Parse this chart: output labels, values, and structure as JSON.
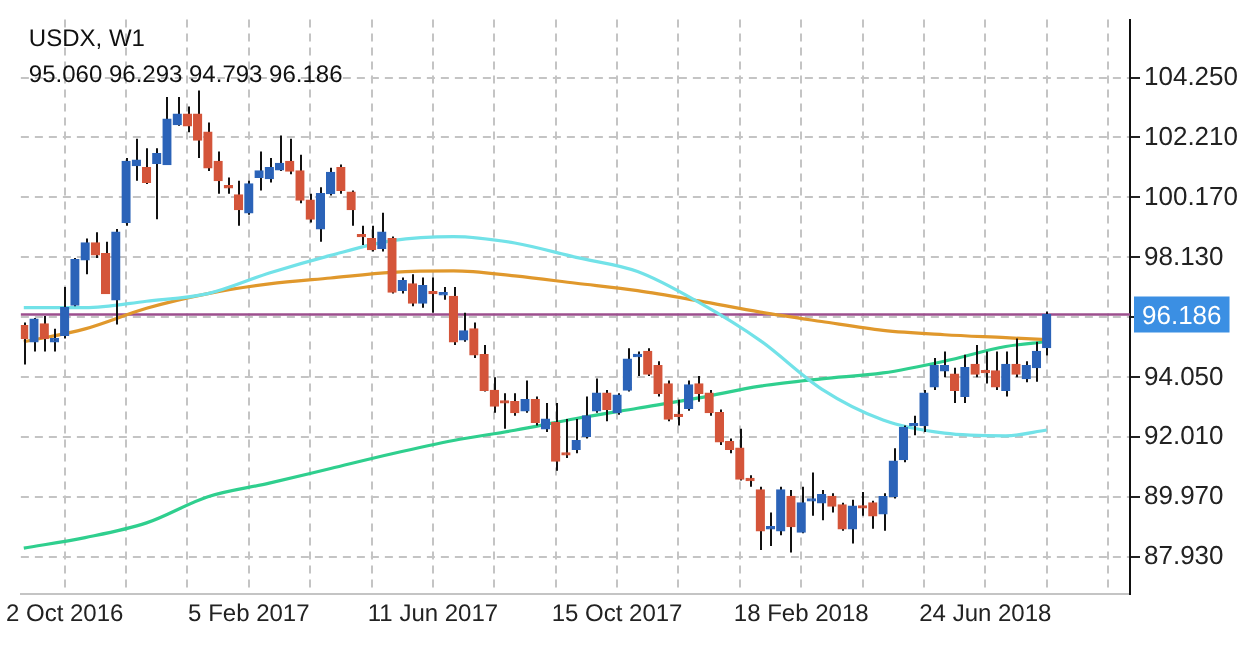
{
  "chart_data": {
    "type": "candlestick",
    "title": "USDX, W1",
    "subtitle": "95.060 96.293 94.793 96.186",
    "x": [
      "2016-09-04",
      "2016-09-11",
      "2016-09-18",
      "2016-09-25",
      "2016-10-02",
      "2016-10-09",
      "2016-10-16",
      "2016-10-23",
      "2016-10-30",
      "2016-11-06",
      "2016-11-13",
      "2016-11-20",
      "2016-11-27",
      "2016-12-04",
      "2016-12-11",
      "2016-12-18",
      "2016-12-25",
      "2017-01-01",
      "2017-01-08",
      "2017-01-15",
      "2017-01-22",
      "2017-01-29",
      "2017-02-05",
      "2017-02-12",
      "2017-02-19",
      "2017-02-26",
      "2017-03-05",
      "2017-03-12",
      "2017-03-19",
      "2017-03-26",
      "2017-04-02",
      "2017-04-09",
      "2017-04-16",
      "2017-04-23",
      "2017-04-30",
      "2017-05-07",
      "2017-05-14",
      "2017-05-21",
      "2017-05-28",
      "2017-06-04",
      "2017-06-11",
      "2017-06-18",
      "2017-06-25",
      "2017-07-02",
      "2017-07-09",
      "2017-07-16",
      "2017-07-23",
      "2017-07-30",
      "2017-08-06",
      "2017-08-13",
      "2017-08-20",
      "2017-08-27",
      "2017-09-03",
      "2017-09-10",
      "2017-09-17",
      "2017-09-24",
      "2017-10-01",
      "2017-10-08",
      "2017-10-15",
      "2017-10-22",
      "2017-10-29",
      "2017-11-05",
      "2017-11-12",
      "2017-11-19",
      "2017-11-26",
      "2017-12-03",
      "2017-12-10",
      "2017-12-17",
      "2017-12-24",
      "2017-12-31",
      "2018-01-07",
      "2018-01-14",
      "2018-01-21",
      "2018-01-28",
      "2018-02-04",
      "2018-02-11",
      "2018-02-18",
      "2018-02-25",
      "2018-03-04",
      "2018-03-11",
      "2018-03-18",
      "2018-03-25",
      "2018-04-01",
      "2018-04-08",
      "2018-04-15",
      "2018-04-22",
      "2018-04-29",
      "2018-05-06",
      "2018-05-13",
      "2018-05-20",
      "2018-05-27",
      "2018-06-03",
      "2018-06-10",
      "2018-06-17",
      "2018-06-24",
      "2018-07-01",
      "2018-07-08",
      "2018-07-15",
      "2018-07-22",
      "2018-07-29",
      "2018-08-05"
    ],
    "ohlc": [
      [
        95.81,
        95.92,
        94.49,
        95.37
      ],
      [
        95.26,
        96.07,
        94.93,
        96.03
      ],
      [
        95.87,
        96.14,
        94.93,
        95.37
      ],
      [
        95.26,
        95.7,
        94.93,
        95.37
      ],
      [
        95.48,
        97.12,
        95.37,
        96.42
      ],
      [
        96.51,
        98.11,
        96.47,
        98.05
      ],
      [
        98.05,
        98.77,
        97.56,
        98.62
      ],
      [
        98.62,
        98.99,
        98.11,
        98.22
      ],
      [
        98.26,
        98.66,
        96.9,
        96.9
      ],
      [
        96.69,
        99.1,
        95.85,
        98.99
      ],
      [
        99.32,
        101.51,
        99.21,
        101.4
      ],
      [
        101.25,
        102.17,
        100.74,
        101.44
      ],
      [
        101.18,
        101.84,
        100.63,
        100.68
      ],
      [
        101.33,
        101.84,
        99.43,
        101.66
      ],
      [
        101.29,
        103.59,
        101.29,
        102.83
      ],
      [
        102.65,
        103.59,
        102.61,
        103.0
      ],
      [
        103.0,
        103.26,
        102.39,
        102.61
      ],
      [
        103.0,
        103.81,
        101.51,
        102.12
      ],
      [
        102.39,
        102.72,
        101.07,
        101.18
      ],
      [
        101.4,
        101.73,
        100.3,
        100.74
      ],
      [
        100.52,
        100.85,
        100.3,
        100.5
      ],
      [
        100.26,
        100.74,
        99.21,
        99.76
      ],
      [
        99.65,
        100.74,
        99.58,
        100.63
      ],
      [
        100.85,
        101.73,
        100.41,
        101.07
      ],
      [
        100.81,
        101.51,
        100.68,
        101.18
      ],
      [
        101.11,
        102.28,
        101.07,
        101.33
      ],
      [
        101.4,
        102.17,
        100.96,
        101.07
      ],
      [
        101.07,
        101.62,
        99.97,
        100.08
      ],
      [
        100.08,
        100.3,
        99.32,
        99.43
      ],
      [
        99.1,
        100.52,
        98.66,
        100.3
      ],
      [
        100.3,
        101.18,
        100.24,
        101.02
      ],
      [
        101.18,
        101.29,
        100.3,
        100.41
      ],
      [
        100.35,
        100.41,
        99.21,
        99.76
      ],
      [
        98.86,
        99.21,
        98.55,
        98.84
      ],
      [
        98.77,
        99.21,
        98.33,
        98.4
      ],
      [
        98.44,
        99.65,
        98.33,
        98.99
      ],
      [
        98.77,
        98.84,
        96.9,
        96.95
      ],
      [
        97.01,
        97.45,
        96.9,
        97.34
      ],
      [
        97.23,
        97.56,
        96.47,
        96.58
      ],
      [
        96.58,
        97.45,
        96.42,
        97.17
      ],
      [
        96.93,
        97.45,
        96.25,
        96.9
      ],
      [
        96.86,
        97.12,
        96.69,
        96.9
      ],
      [
        96.8,
        97.12,
        95.15,
        95.26
      ],
      [
        95.33,
        96.25,
        95.26,
        95.63
      ],
      [
        95.7,
        95.92,
        94.71,
        94.82
      ],
      [
        94.82,
        95.15,
        93.57,
        93.61
      ],
      [
        93.61,
        94.05,
        92.85,
        93.07
      ],
      [
        93.2,
        93.51,
        92.3,
        93.18
      ],
      [
        93.22,
        93.51,
        92.74,
        92.85
      ],
      [
        92.91,
        93.94,
        92.85,
        93.29
      ],
      [
        93.29,
        93.4,
        92.41,
        92.52
      ],
      [
        92.3,
        93.18,
        92.19,
        92.63
      ],
      [
        92.52,
        93.18,
        90.87,
        91.2
      ],
      [
        91.43,
        92.63,
        91.31,
        91.41
      ],
      [
        91.6,
        92.63,
        91.47,
        91.9
      ],
      [
        92.04,
        93.4,
        91.97,
        92.74
      ],
      [
        92.91,
        94.01,
        92.85,
        93.51
      ],
      [
        93.51,
        93.62,
        92.56,
        92.96
      ],
      [
        92.85,
        93.51,
        92.78,
        93.44
      ],
      [
        93.62,
        95.04,
        93.57,
        94.67
      ],
      [
        94.76,
        94.93,
        94.1,
        94.78
      ],
      [
        94.93,
        95.04,
        94.1,
        94.16
      ],
      [
        94.45,
        94.6,
        93.4,
        93.51
      ],
      [
        93.83,
        93.94,
        92.56,
        92.63
      ],
      [
        92.74,
        93.29,
        92.41,
        92.72
      ],
      [
        93.0,
        93.94,
        92.91,
        93.79
      ],
      [
        93.83,
        94.1,
        93.22,
        93.51
      ],
      [
        93.51,
        93.62,
        92.74,
        92.85
      ],
      [
        92.85,
        92.96,
        91.75,
        91.86
      ],
      [
        91.86,
        91.97,
        91.47,
        91.6
      ],
      [
        91.64,
        92.3,
        90.54,
        90.59
      ],
      [
        90.55,
        90.72,
        90.33,
        90.54
      ],
      [
        90.22,
        90.33,
        88.18,
        88.83
      ],
      [
        88.9,
        89.45,
        88.31,
        88.92
      ],
      [
        88.83,
        90.33,
        88.68,
        90.22
      ],
      [
        90.0,
        90.22,
        88.09,
        88.97
      ],
      [
        88.79,
        90.33,
        88.75,
        89.78
      ],
      [
        89.85,
        90.81,
        89.34,
        89.87
      ],
      [
        89.78,
        90.22,
        89.19,
        90.06
      ],
      [
        90.0,
        90.11,
        89.45,
        89.67
      ],
      [
        89.71,
        89.78,
        88.83,
        88.9
      ],
      [
        88.9,
        89.89,
        88.4,
        89.67
      ],
      [
        89.63,
        90.15,
        89.34,
        89.61
      ],
      [
        89.78,
        89.85,
        88.9,
        89.34
      ],
      [
        89.41,
        90.11,
        88.83,
        89.99
      ],
      [
        90.0,
        91.64,
        89.93,
        91.2
      ],
      [
        91.25,
        92.41,
        91.16,
        92.34
      ],
      [
        92.41,
        92.74,
        92.08,
        92.43
      ],
      [
        92.41,
        93.62,
        92.19,
        93.51
      ],
      [
        93.73,
        94.71,
        93.62,
        94.45
      ],
      [
        94.27,
        94.93,
        94.05,
        94.45
      ],
      [
        94.16,
        94.38,
        93.18,
        93.61
      ],
      [
        93.4,
        94.82,
        93.18,
        94.38
      ],
      [
        94.49,
        95.15,
        94.05,
        94.16
      ],
      [
        94.23,
        94.93,
        93.84,
        94.21
      ],
      [
        94.27,
        94.93,
        93.62,
        93.73
      ],
      [
        93.61,
        94.93,
        93.4,
        94.49
      ],
      [
        94.49,
        95.37,
        94.05,
        94.16
      ],
      [
        94.01,
        94.6,
        93.88,
        94.45
      ],
      [
        94.38,
        95.26,
        93.9,
        94.93
      ],
      [
        95.06,
        96.293,
        94.793,
        96.186
      ]
    ],
    "colors": [
      "#d4553a",
      "#2b63b8",
      "#d4553a",
      "#2b63b8",
      "#2b63b8",
      "#2b63b8",
      "#2b63b8",
      "#d4553a",
      "#d4553a",
      "#2b63b8",
      "#2b63b8",
      "#2b63b8",
      "#d4553a",
      "#2b63b8",
      "#2b63b8",
      "#2b63b8",
      "#d4553a",
      "#d4553a",
      "#d4553a",
      "#d4553a",
      "#d4553a",
      "#d4553a",
      "#2b63b8",
      "#2b63b8",
      "#2b63b8",
      "#2b63b8",
      "#d4553a",
      "#d4553a",
      "#d4553a",
      "#2b63b8",
      "#2b63b8",
      "#d4553a",
      "#d4553a",
      "#d4553a",
      "#d4553a",
      "#2b63b8",
      "#d4553a",
      "#2b63b8",
      "#d4553a",
      "#2b63b8",
      "#d4553a",
      "#2b63b8",
      "#d4553a",
      "#2b63b8",
      "#d4553a",
      "#d4553a",
      "#d4553a",
      "#d4553a",
      "#d4553a",
      "#2b63b8",
      "#d4553a",
      "#2b63b8",
      "#d4553a",
      "#d4553a",
      "#2b63b8",
      "#2b63b8",
      "#2b63b8",
      "#d4553a",
      "#2b63b8",
      "#2b63b8",
      "#2b63b8",
      "#d4553a",
      "#d4553a",
      "#d4553a",
      "#d4553a",
      "#2b63b8",
      "#d4553a",
      "#d4553a",
      "#d4553a",
      "#d4553a",
      "#d4553a",
      "#d4553a",
      "#d4553a",
      "#2b63b8",
      "#2b63b8",
      "#d4553a",
      "#2b63b8",
      "#2b63b8",
      "#2b63b8",
      "#d4553a",
      "#d4553a",
      "#2b63b8",
      "#d4553a",
      "#d4553a",
      "#2b63b8",
      "#2b63b8",
      "#2b63b8",
      "#2b63b8",
      "#2b63b8",
      "#2b63b8",
      "#2b63b8",
      "#d4553a",
      "#2b63b8",
      "#d4553a",
      "#d4553a",
      "#d4553a",
      "#2b63b8",
      "#d4553a",
      "#2b63b8",
      "#2b63b8",
      "#2b63b8"
    ],
    "series": [
      {
        "type": "line",
        "color": "#72e2e8",
        "x": [
          "2016-09-04",
          "2016-10-16",
          "2016-11-27",
          "2017-01-08",
          "2017-02-19",
          "2017-04-02",
          "2017-05-14",
          "2017-06-25",
          "2017-08-06",
          "2017-09-17",
          "2017-10-29",
          "2017-12-10",
          "2018-01-21",
          "2018-03-04",
          "2018-04-15",
          "2018-05-27",
          "2018-07-08",
          "2018-08-05"
        ],
        "values": [
          96.42,
          96.42,
          96.64,
          96.9,
          97.6,
          98.2,
          98.7,
          98.84,
          98.62,
          98.13,
          97.65,
          96.6,
          95.3,
          93.65,
          92.6,
          92.15,
          92.06,
          92.26
        ]
      },
      {
        "type": "line",
        "color": "#e0982c",
        "x": [
          "2016-09-04",
          "2016-10-16",
          "2016-11-27",
          "2017-01-08",
          "2017-02-19",
          "2017-04-02",
          "2017-05-14",
          "2017-06-25",
          "2017-08-06",
          "2017-09-17",
          "2017-10-29",
          "2017-12-10",
          "2018-01-21",
          "2018-03-04",
          "2018-04-15",
          "2018-05-27",
          "2018-07-08",
          "2018-08-05"
        ],
        "values": [
          95.26,
          95.7,
          96.4,
          96.9,
          97.23,
          97.43,
          97.62,
          97.67,
          97.5,
          97.25,
          97.0,
          96.65,
          96.27,
          95.95,
          95.65,
          95.5,
          95.4,
          95.33
        ]
      },
      {
        "type": "line",
        "color": "#2fcf8e",
        "x": [
          "2016-09-04",
          "2016-10-16",
          "2016-11-27",
          "2017-01-08",
          "2017-02-19",
          "2017-04-02",
          "2017-05-14",
          "2017-06-25",
          "2017-08-06",
          "2017-09-17",
          "2017-10-29",
          "2017-12-10",
          "2018-01-21",
          "2018-03-04",
          "2018-04-15",
          "2018-05-27",
          "2018-07-08",
          "2018-08-05"
        ],
        "values": [
          88.24,
          88.6,
          89.1,
          89.99,
          90.45,
          90.95,
          91.45,
          91.9,
          92.25,
          92.65,
          93.0,
          93.35,
          93.75,
          94.0,
          94.2,
          94.6,
          95.1,
          95.26
        ]
      }
    ],
    "xlim": [
      "2016-09-02",
      "2018-10-01"
    ],
    "xticks": [
      {
        "value": "2016-10-02",
        "label": "2 Oct 2016"
      },
      {
        "value": "2016-11-13",
        "label": null
      },
      {
        "value": "2016-12-25",
        "label": null
      },
      {
        "value": "2017-02-05",
        "label": "5 Feb 2017"
      },
      {
        "value": "2017-03-19",
        "label": null
      },
      {
        "value": "2017-04-30",
        "label": null
      },
      {
        "value": "2017-06-11",
        "label": "11 Jun 2017"
      },
      {
        "value": "2017-07-23",
        "label": null
      },
      {
        "value": "2017-09-03",
        "label": null
      },
      {
        "value": "2017-10-15",
        "label": "15 Oct 2017"
      },
      {
        "value": "2017-11-26",
        "label": null
      },
      {
        "value": "2018-01-07",
        "label": null
      },
      {
        "value": "2018-02-18",
        "label": "18 Feb 2018"
      },
      {
        "value": "2018-04-01",
        "label": null
      },
      {
        "value": "2018-05-13",
        "label": null
      },
      {
        "value": "2018-06-24",
        "label": "24 Jun 2018"
      },
      {
        "value": "2018-08-05",
        "label": null
      },
      {
        "value": "2018-09-16",
        "label": null
      }
    ],
    "ylim": [
      86.68,
      106.22
    ],
    "yticks": [
      {
        "value": 87.93,
        "label": "87.930"
      },
      {
        "value": 89.97,
        "label": "89.970"
      },
      {
        "value": 92.01,
        "label": "92.010"
      },
      {
        "value": 94.05,
        "label": "94.050"
      },
      {
        "value": 96.09,
        "label": null
      },
      {
        "value": 98.13,
        "label": "98.130"
      },
      {
        "value": 100.17,
        "label": "100.170"
      },
      {
        "value": 102.21,
        "label": "102.210"
      },
      {
        "value": 104.25,
        "label": "104.250"
      }
    ],
    "ref_lines": [
      {
        "axis": "y",
        "value": 96.186,
        "label": "96.186",
        "color": "#9c4f8e"
      }
    ],
    "grid": true,
    "legend": false
  }
}
